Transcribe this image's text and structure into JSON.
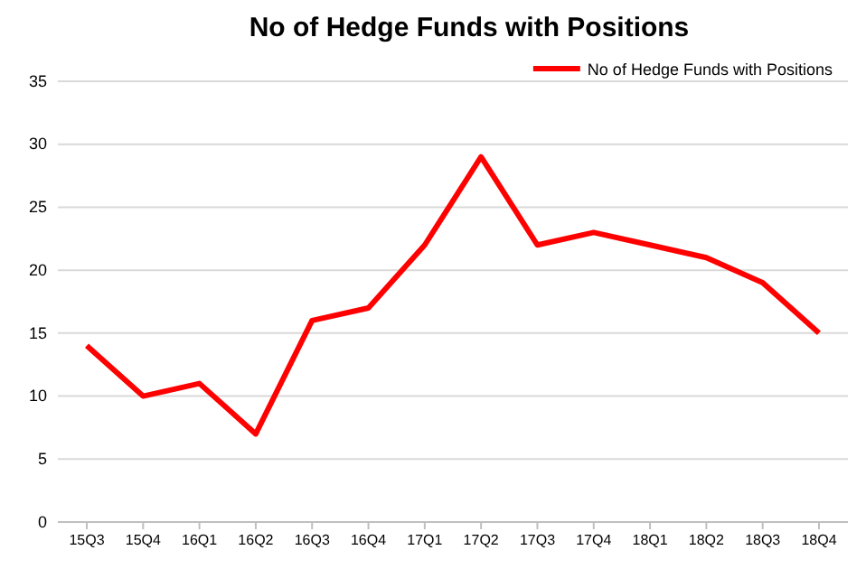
{
  "chart_data": {
    "type": "line",
    "title": "No of Hedge Funds with Positions",
    "categories": [
      "15Q3",
      "15Q4",
      "16Q1",
      "16Q2",
      "16Q3",
      "16Q4",
      "17Q1",
      "17Q2",
      "17Q3",
      "17Q4",
      "18Q1",
      "18Q2",
      "18Q3",
      "18Q4"
    ],
    "series": [
      {
        "name": "No of Hedge Funds with Positions",
        "color": "#ff0000",
        "values": [
          14,
          10,
          11,
          7,
          16,
          17,
          22,
          29,
          22,
          23,
          22,
          21,
          19,
          15
        ]
      }
    ],
    "ylim": [
      0,
      35
    ],
    "yticks": [
      0,
      5,
      10,
      15,
      20,
      25,
      30,
      35
    ],
    "grid": "y",
    "legend": "top right",
    "marker": "none",
    "line_style": "solid"
  }
}
